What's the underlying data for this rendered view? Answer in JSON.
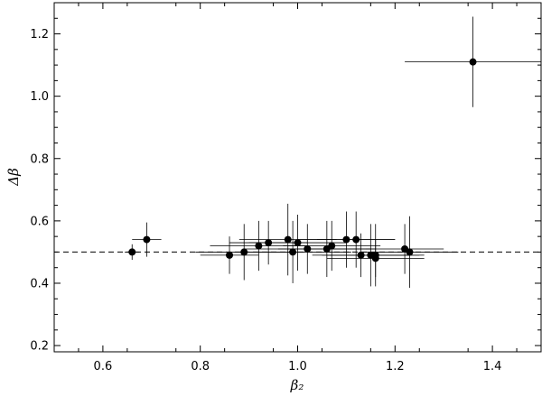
{
  "chart_data": {
    "type": "scatter",
    "title": "",
    "xlabel": "β₂",
    "ylabel": "Δβ",
    "xlim": [
      0.5,
      1.5
    ],
    "ylim": [
      0.18,
      1.3
    ],
    "x_ticks": [
      0.6,
      0.8,
      1.0,
      1.2,
      1.4
    ],
    "y_ticks": [
      0.2,
      0.4,
      0.6,
      0.8,
      1.0,
      1.2
    ],
    "x_tick_labels": [
      "0.6",
      "0.8",
      "1.0",
      "1.2",
      "1.4"
    ],
    "y_tick_labels": [
      "0.2",
      "0.4",
      "0.6",
      "0.8",
      "1.0",
      "1.2"
    ],
    "reference_line": {
      "y": 0.5,
      "style": "dashed"
    },
    "grid": false,
    "legend": "none",
    "points": [
      {
        "x": 0.66,
        "y": 0.5,
        "xerr": 0.015,
        "yerr": 0.025
      },
      {
        "x": 0.69,
        "y": 0.54,
        "xerr": 0.03,
        "yerr": 0.055
      },
      {
        "x": 0.86,
        "y": 0.49,
        "xerr": 0.06,
        "yerr": 0.06
      },
      {
        "x": 0.89,
        "y": 0.5,
        "xerr": 0.1,
        "yerr": 0.09
      },
      {
        "x": 0.92,
        "y": 0.52,
        "xerr": 0.1,
        "yerr": 0.08
      },
      {
        "x": 0.94,
        "y": 0.53,
        "xerr": 0.08,
        "yerr": 0.07
      },
      {
        "x": 0.98,
        "y": 0.54,
        "xerr": 0.1,
        "yerr": 0.115
      },
      {
        "x": 0.99,
        "y": 0.5,
        "xerr": 0.12,
        "yerr": 0.1
      },
      {
        "x": 1.0,
        "y": 0.53,
        "xerr": 0.1,
        "yerr": 0.09
      },
      {
        "x": 1.02,
        "y": 0.51,
        "xerr": 0.13,
        "yerr": 0.08
      },
      {
        "x": 1.06,
        "y": 0.51,
        "xerr": 0.1,
        "yerr": 0.09
      },
      {
        "x": 1.07,
        "y": 0.52,
        "xerr": 0.1,
        "yerr": 0.08
      },
      {
        "x": 1.1,
        "y": 0.54,
        "xerr": 0.1,
        "yerr": 0.09
      },
      {
        "x": 1.12,
        "y": 0.54,
        "xerr": 0.08,
        "yerr": 0.09
      },
      {
        "x": 1.13,
        "y": 0.49,
        "xerr": 0.1,
        "yerr": 0.07
      },
      {
        "x": 1.15,
        "y": 0.49,
        "xerr": 0.1,
        "yerr": 0.1
      },
      {
        "x": 1.16,
        "y": 0.49,
        "xerr": 0.1,
        "yerr": 0.1
      },
      {
        "x": 1.16,
        "y": 0.48,
        "xerr": 0.1,
        "yerr": 0.06
      },
      {
        "x": 1.22,
        "y": 0.51,
        "xerr": 0.08,
        "yerr": 0.08
      },
      {
        "x": 1.23,
        "y": 0.5,
        "xerr": 0.1,
        "yerr": 0.115
      },
      {
        "x": 1.36,
        "y": 1.11,
        "xerr": 0.14,
        "yerr": 0.145
      }
    ]
  }
}
